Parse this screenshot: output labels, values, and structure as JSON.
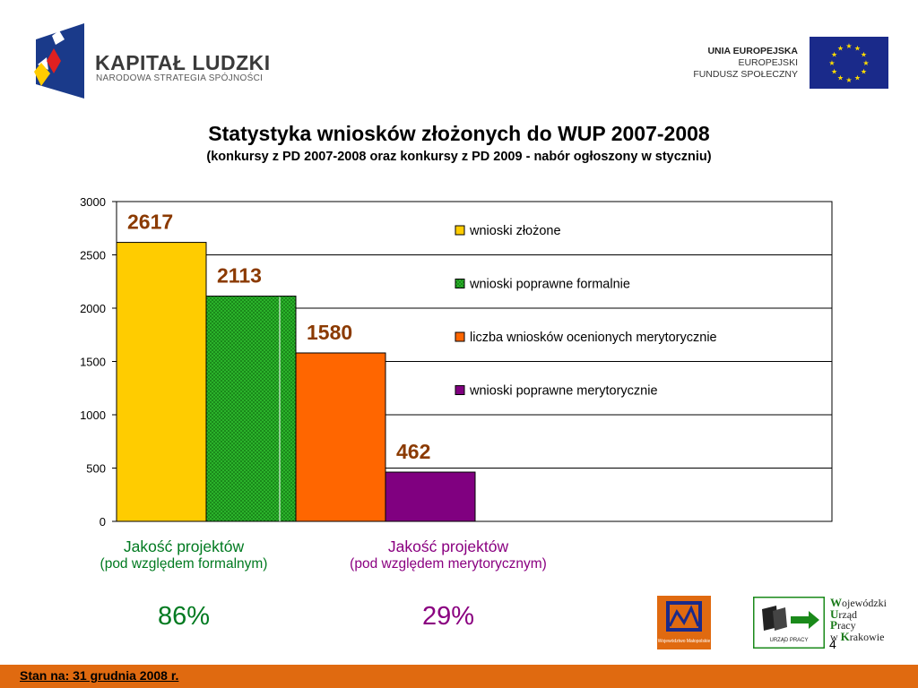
{
  "header": {
    "kl_title": "KAPITAŁ LUDZKI",
    "kl_subtitle": "NARODOWA STRATEGIA SPÓJNOŚCI",
    "ue_line1": "UNIA EUROPEJSKA",
    "ue_line2": "EUROPEJSKI",
    "ue_line3": "FUNDUSZ SPOŁECZNY"
  },
  "colors": {
    "yellow": "#ffcc00",
    "green": "#2bb22b",
    "orange": "#ff6600",
    "purple": "#800080",
    "label_brown": "#8b3a00",
    "footer": "#e06a10"
  },
  "chart_data": {
    "type": "bar",
    "title": "Statystyka wniosków złożonych do WUP 2007-2008",
    "subtitle": "(konkursy z PD 2007-2008 oraz konkursy z PD 2009 - nabór ogłoszony w styczniu)",
    "series": [
      {
        "name": "wnioski złożone",
        "values": [
          2617
        ],
        "color": "#ffcc00"
      },
      {
        "name": "wnioski poprawne formalnie",
        "values": [
          2113
        ],
        "color": "#2bb22b"
      },
      {
        "name": "liczba wniosków ocenionych merytorycznie",
        "values": [
          1580
        ],
        "color": "#ff6600"
      },
      {
        "name": "wnioski poprawne merytorycznie",
        "values": [
          462
        ],
        "color": "#800080"
      }
    ],
    "data_labels": [
      "2617",
      "2113",
      "1580",
      "462"
    ],
    "y_ticks": [
      "0",
      "500",
      "1000",
      "1500",
      "2000",
      "2500",
      "3000"
    ],
    "ylim": [
      0,
      3000
    ],
    "grid": true,
    "legend_position": "right"
  },
  "captions": {
    "left_line1": "Jakość projektów",
    "left_line2": "(pod względem formalnym)",
    "left_pct": "86%",
    "right_line1": "Jakość projektów",
    "right_line2": "(pod względem merytorycznym)",
    "right_pct": "29%"
  },
  "footer": {
    "date": "Stan na:  31 grudnia 2008 r.",
    "page": "4",
    "wup_lines": [
      "Wojewódzki",
      "Urząd",
      "Pracy",
      "w Krakowie"
    ],
    "wup_logo_text": "URZĄD PRACY",
    "malopolska_text": "Województwo Małopolskie"
  }
}
